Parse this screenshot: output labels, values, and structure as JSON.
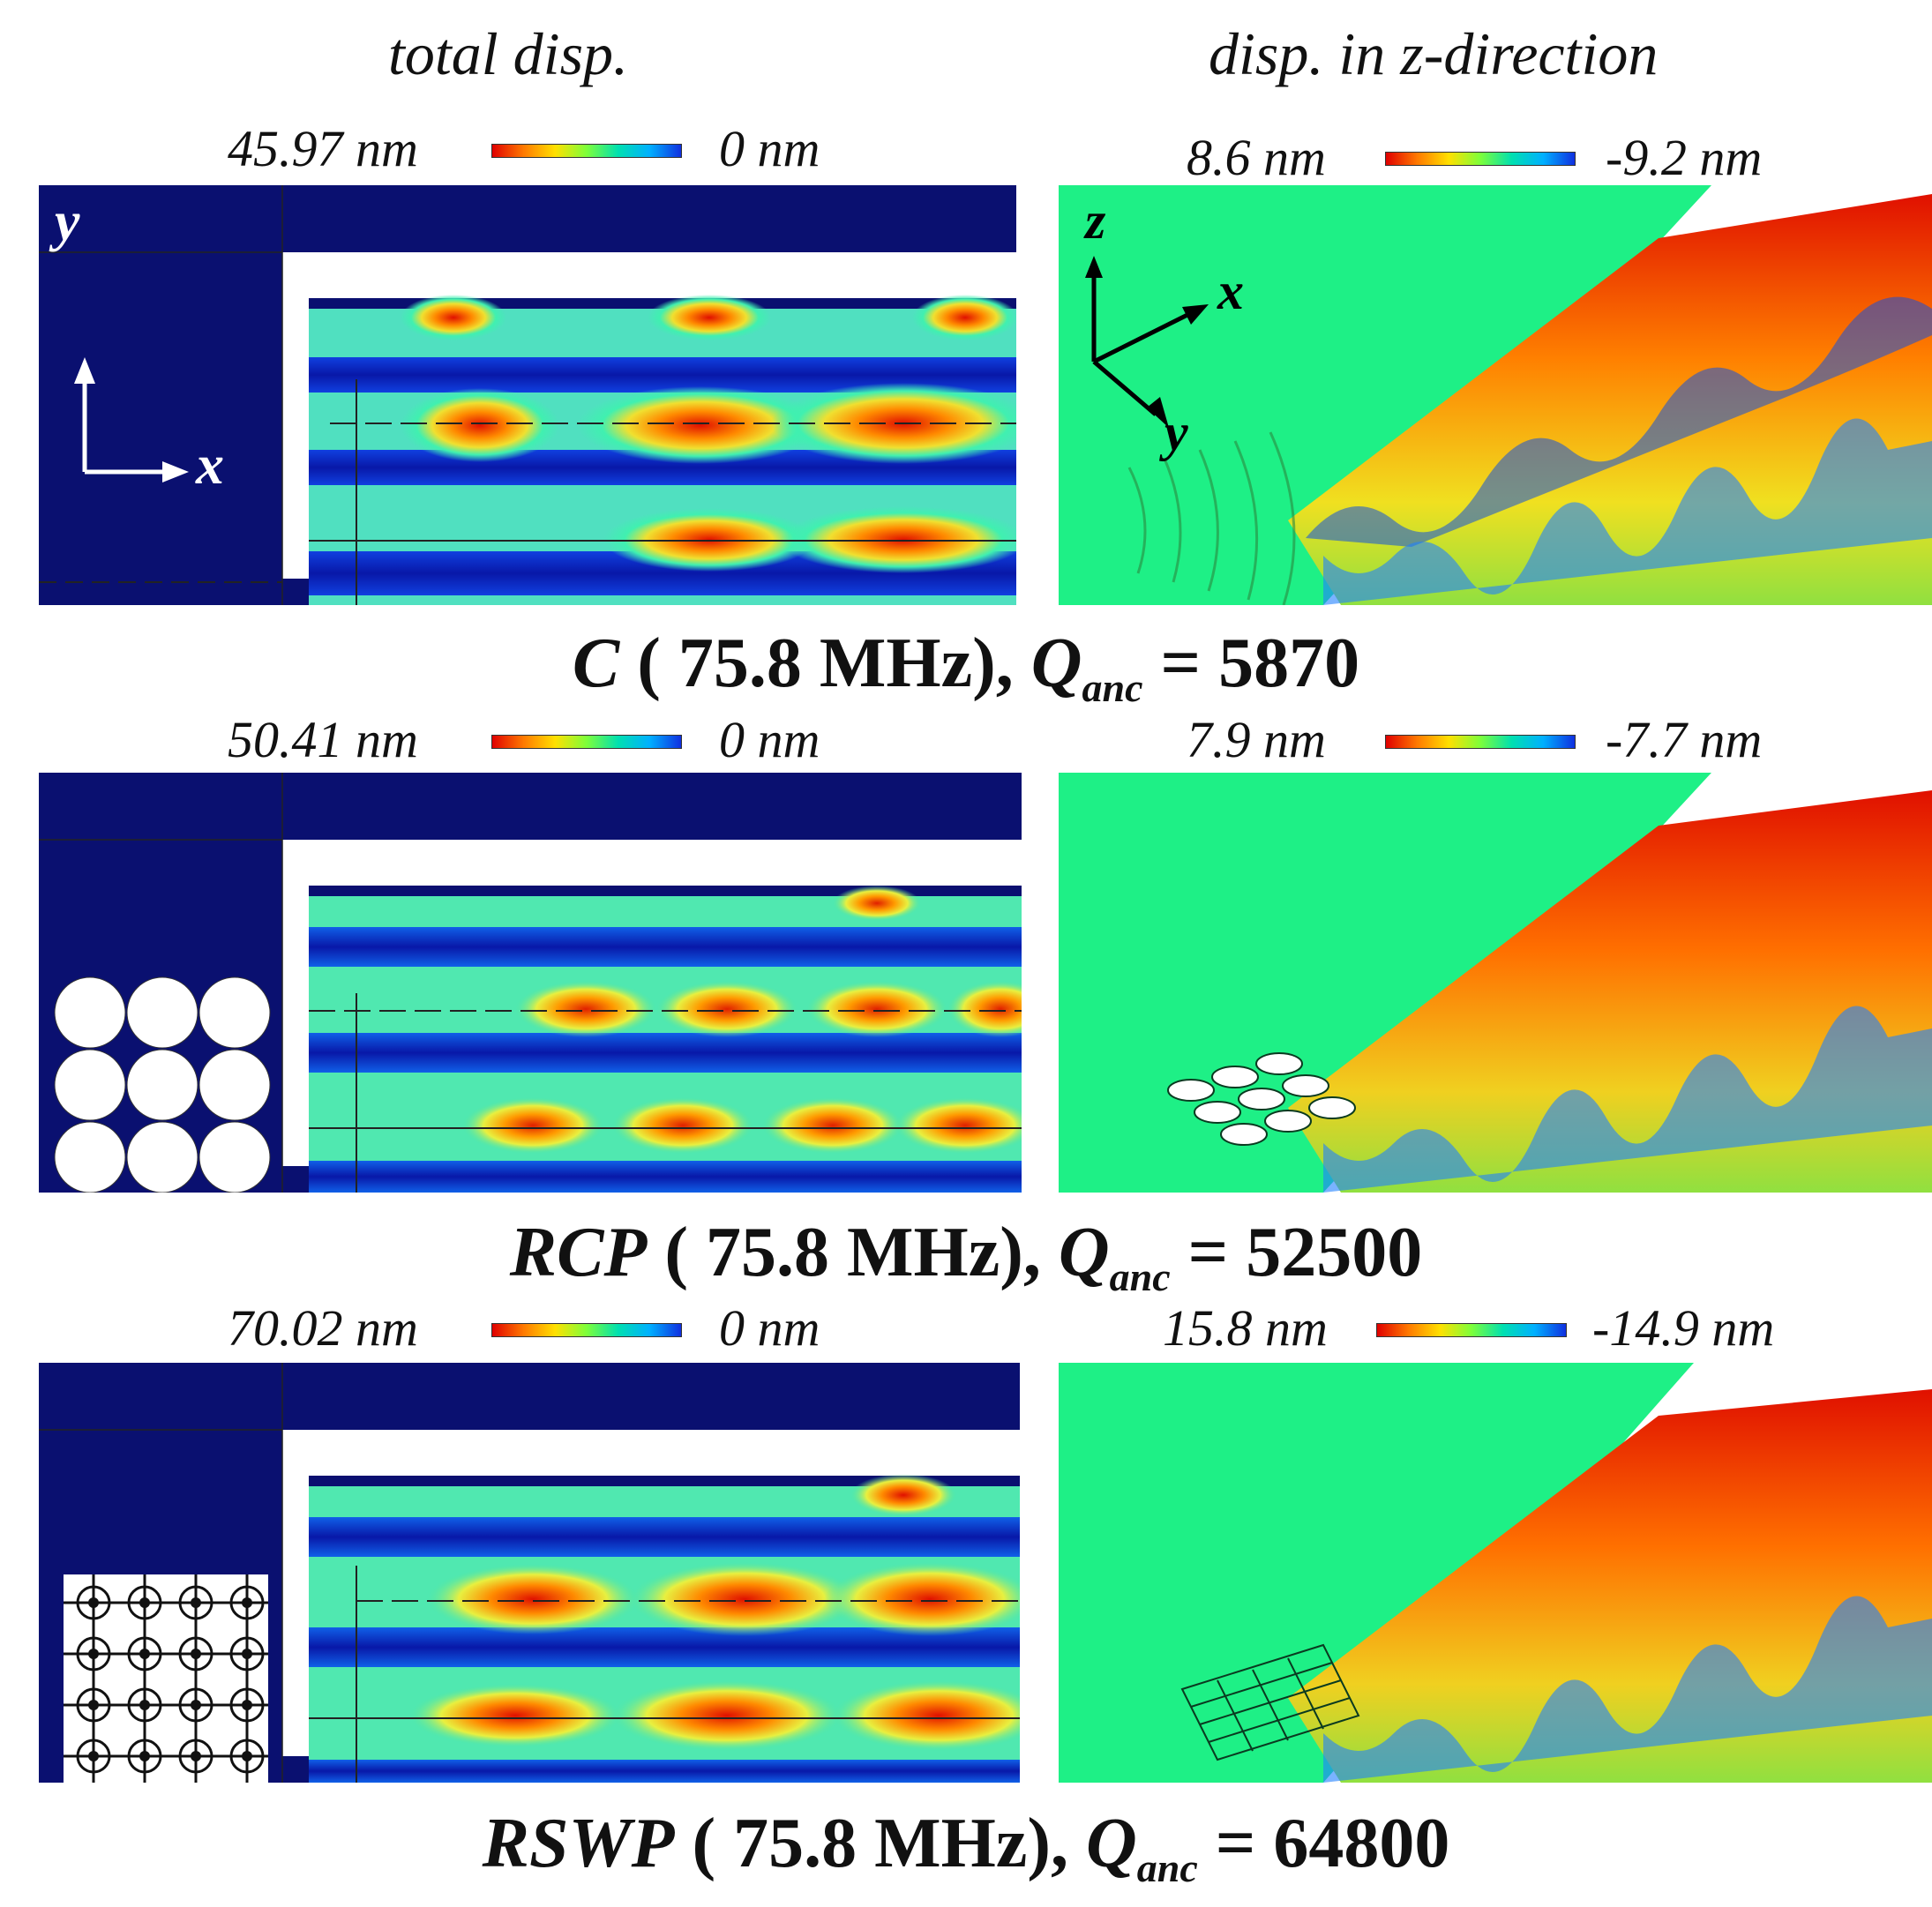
{
  "column_titles": {
    "left": "total disp.",
    "right": "disp. in z-direction"
  },
  "axes_left": {
    "y": "y",
    "x": "x"
  },
  "axes_right": {
    "z": "z",
    "x": "x",
    "y": "y"
  },
  "rows": [
    {
      "total_max": "45.97 nm",
      "total_min": "0 nm",
      "z_max": "8.6 nm",
      "z_min": "-9.2 nm",
      "caption_name": "C",
      "caption_freq": " ( 75.8 MHz), ",
      "caption_q": "Q",
      "caption_q_sub": "anc",
      "caption_value": " = 5870"
    },
    {
      "total_max": "50.41 nm",
      "total_min": "0 nm",
      "z_max": "7.9 nm",
      "z_min": "-7.7 nm",
      "caption_name": "RCP",
      "caption_freq": " ( 75.8 MHz), ",
      "caption_q": "Q",
      "caption_q_sub": "anc",
      "caption_value": " = 52500"
    },
    {
      "total_max": "70.02 nm",
      "total_min": "0 nm",
      "z_max": "15.8 nm",
      "z_min": "-14.9 nm",
      "caption_name": "RSWP",
      "caption_freq": " ( 75.8 MHz), ",
      "caption_q": "Q",
      "caption_q_sub": "anc",
      "caption_value": " = 64800"
    }
  ],
  "colors": {
    "navy": "#0a1070",
    "green": "#1ef086",
    "red": "#e01000",
    "yellow": "#f0e020",
    "cyan": "#10d0e0",
    "blue": "#1030d0"
  }
}
